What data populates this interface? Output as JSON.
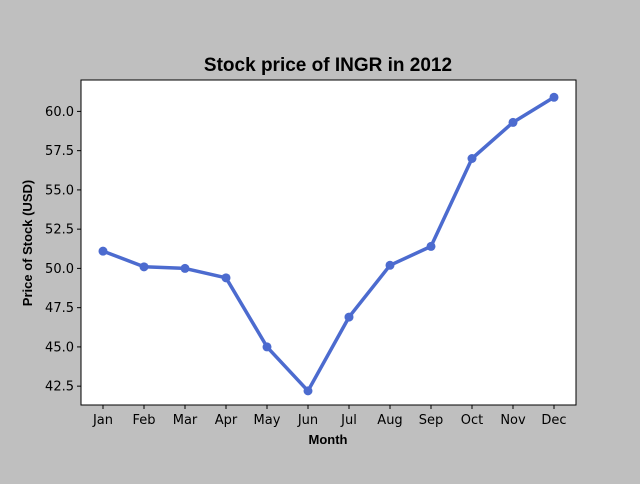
{
  "chart_data": {
    "type": "line",
    "title": "Stock price of INGR in 2012",
    "xlabel": "Month",
    "ylabel": "Price of Stock (USD)",
    "categories": [
      "Jan",
      "Feb",
      "Mar",
      "Apr",
      "May",
      "Jun",
      "Jul",
      "Aug",
      "Sep",
      "Oct",
      "Nov",
      "Dec"
    ],
    "values": [
      51.1,
      50.1,
      50.0,
      49.4,
      45.0,
      42.2,
      46.9,
      50.2,
      51.4,
      57.0,
      59.3,
      60.9
    ],
    "ylim": [
      41.3,
      62.0
    ],
    "yticks": [
      "42.5",
      "45.0",
      "47.5",
      "50.0",
      "52.5",
      "55.0",
      "57.5",
      "60.0"
    ],
    "grid": false,
    "line_color": "#4c6bcf",
    "background_color": "#bfbfbf",
    "plot_background_color": "#ffffff"
  }
}
